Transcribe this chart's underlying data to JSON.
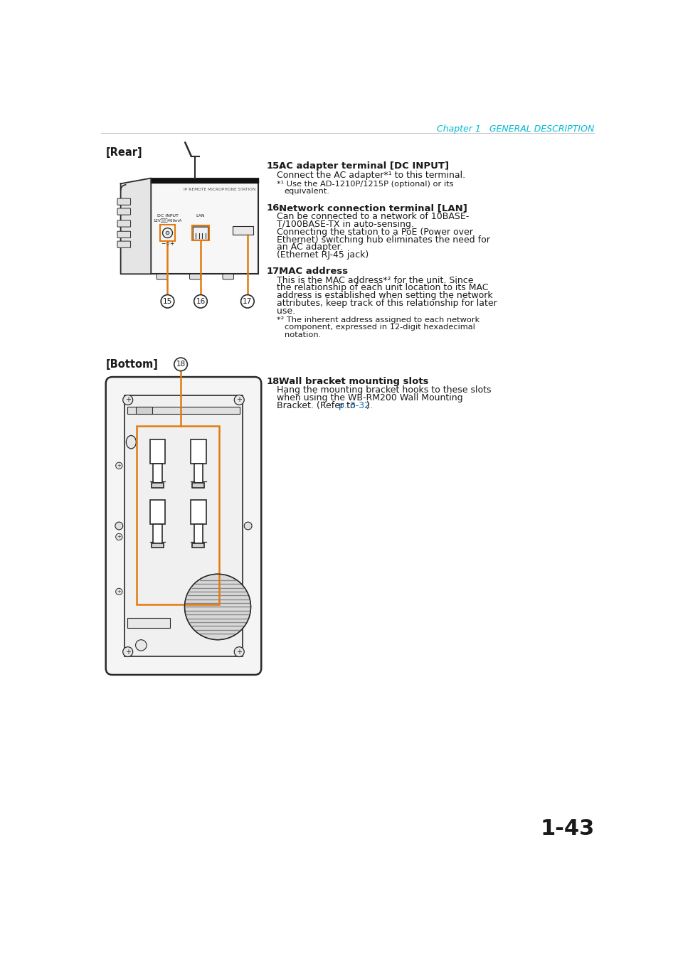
{
  "page_bg": "#ffffff",
  "header_text": "Chapter 1   GENERAL DESCRIPTION",
  "header_color": "#00bcd4",
  "rear_label": "[Rear]",
  "bottom_label": "[Bottom]",
  "page_number": "1-43",
  "orange_color": "#e07b10",
  "line_color": "#2a2a2a",
  "text_color": "#1a1a1a",
  "gray_text": "#555555",
  "link_color": "#1a6cb0",
  "font_size_body": 9.0,
  "font_size_small": 8.2,
  "font_size_title": 9.5
}
